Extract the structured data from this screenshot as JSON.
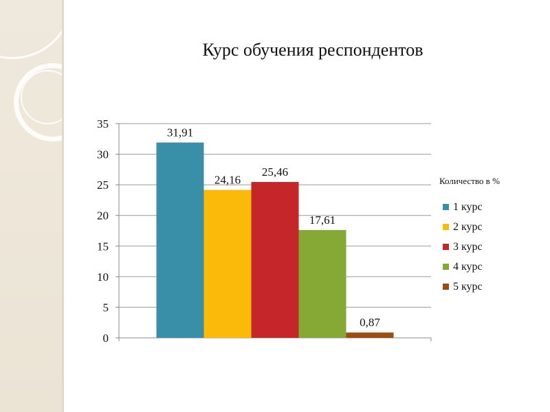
{
  "colors": {
    "background": "#ffffff",
    "sidebar": "#ece6d8",
    "grid": "#999999",
    "axis": "#888888"
  },
  "chart_data": {
    "type": "bar",
    "title": "Курс обучения респондентов",
    "legend_title": "Количество в %",
    "legend_position": "right",
    "grid": true,
    "ylim": [
      0,
      35
    ],
    "yticks": [
      0,
      5,
      10,
      15,
      20,
      25,
      30,
      35
    ],
    "series": [
      {
        "name": "1 курс",
        "value": 31.91,
        "label": "31,91",
        "color": "#3a8fa8"
      },
      {
        "name": "2 курс",
        "value": 24.16,
        "label": "24,16",
        "color": "#fbb90a"
      },
      {
        "name": "3 курс",
        "value": 25.46,
        "label": "25,46",
        "color": "#c5262a"
      },
      {
        "name": "4 курс",
        "value": 17.61,
        "label": "17,61",
        "color": "#86a834"
      },
      {
        "name": "5 курс",
        "value": 0.87,
        "label": "0,87",
        "color": "#9c4c10"
      }
    ]
  }
}
